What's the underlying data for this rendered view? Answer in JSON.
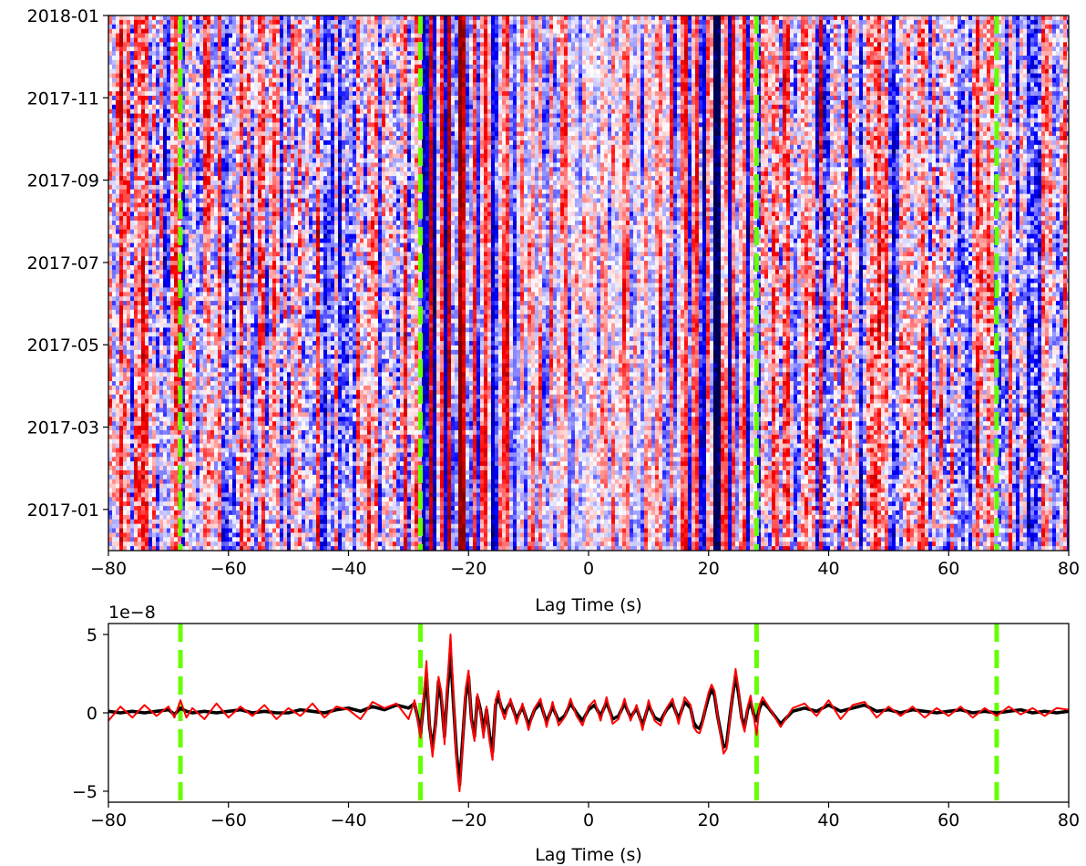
{
  "chart_data": [
    {
      "type": "heatmap",
      "title": "",
      "xlabel": "Lag Time (s)",
      "ylabel": "",
      "xlim": [
        -80,
        80
      ],
      "xticks": [
        -80,
        -60,
        -40,
        -20,
        0,
        20,
        40,
        60,
        80
      ],
      "ytick_labels": [
        "2018-01",
        "2017-11",
        "2017-09",
        "2017-07",
        "2017-05",
        "2017-03",
        "2017-01"
      ],
      "ylim": [
        "2016-12",
        "2018-01"
      ],
      "colormap": "seismic (blue-white-red)",
      "colors": {
        "negative": "#0000cc",
        "positive": "#d40000",
        "deep_negative": "#000050",
        "deep_positive": "#800000"
      },
      "column_means": {
        "x": [
          -28.0,
          -27.2,
          -26.4,
          -25.6,
          -24.8,
          -24.0,
          -23.2,
          -22.4,
          -21.6,
          -20.8,
          -20.0,
          -19.2,
          -18.4,
          -17.6,
          -16.8,
          -16.0,
          -15.2,
          -14.4,
          -13.6,
          -12.8,
          -12.0,
          -11.2,
          -10.4,
          -9.6,
          -8.8,
          -8.0,
          -7.2,
          -6.4,
          -5.6,
          -4.8,
          -4.0,
          -3.2,
          -2.4,
          -1.6,
          -0.8,
          0.0,
          0.8,
          1.6,
          2.4,
          3.2,
          4.0,
          4.8,
          5.6,
          6.4,
          7.2,
          8.0,
          8.8,
          9.6,
          10.4,
          11.2,
          12.0,
          12.8,
          13.6,
          14.4,
          15.2,
          16.0,
          16.8,
          17.6,
          18.4,
          19.2,
          20.0,
          20.8,
          21.6,
          22.4,
          23.2,
          24.0,
          24.8,
          25.6,
          26.4,
          27.2,
          28.0
        ],
        "values": [
          -0.5,
          -0.9,
          0.7,
          -0.9,
          0.9,
          -0.8,
          1.0,
          -1.0,
          1.0,
          0.5,
          -0.6,
          0.6,
          -0.5,
          0.6,
          0.3,
          -0.7,
          -0.2,
          0.3,
          0.5,
          -0.4,
          -0.2,
          0.3,
          -0.3,
          0.4,
          -0.2,
          0.3,
          -0.5,
          0.4,
          -0.3,
          0.2,
          0.3,
          -0.3,
          0.2,
          -0.2,
          0.1,
          0.0,
          0.2,
          -0.2,
          0.3,
          -0.2,
          0.2,
          -0.3,
          0.2,
          0.3,
          -0.3,
          0.2,
          -0.2,
          0.3,
          -0.2,
          0.2,
          0.3,
          -0.4,
          0.4,
          -0.5,
          0.3,
          0.6,
          -0.7,
          0.8,
          -0.4,
          -0.6,
          0.8,
          -1.0,
          -1.0,
          0.9,
          -0.8,
          0.6,
          -0.5,
          0.7,
          -0.6,
          0.5,
          -0.5
        ]
      },
      "reference_lines": {
        "x": [
          -68,
          -28,
          28,
          68
        ],
        "color": "#66ff00",
        "style": "dashed"
      }
    },
    {
      "type": "line",
      "title": "",
      "xlabel": "Lag Time (s)",
      "ylabel": "",
      "offset_label": "1e−8",
      "xlim": [
        -80,
        80
      ],
      "ylim": [
        -5.7,
        5.7
      ],
      "xticks": [
        -80,
        -60,
        -40,
        -20,
        0,
        20,
        40,
        60,
        80
      ],
      "yticks": [
        -5,
        0,
        5
      ],
      "reference_lines": {
        "x": [
          -68,
          -28,
          28,
          68
        ],
        "color": "#66ff00",
        "style": "dashed"
      },
      "series": [
        {
          "color": "#000000",
          "x": [
            -80,
            -78,
            -76,
            -74,
            -72,
            -70,
            -69,
            -68,
            -67,
            -66,
            -64,
            -62,
            -60,
            -58,
            -56,
            -54,
            -52,
            -50,
            -48,
            -46,
            -44,
            -42,
            -40,
            -38,
            -36,
            -34,
            -32,
            -30,
            -29,
            -28.4,
            -28,
            -27.5,
            -27,
            -26.5,
            -26,
            -25.5,
            -25,
            -24.5,
            -24,
            -23.5,
            -23,
            -22.5,
            -22,
            -21.5,
            -21,
            -20.5,
            -20,
            -19.5,
            -19,
            -18.5,
            -18,
            -17.5,
            -17,
            -16.5,
            -16,
            -15.5,
            -15,
            -14.5,
            -14,
            -13,
            -12,
            -11,
            -10,
            -9,
            -8,
            -7,
            -6,
            -5,
            -4,
            -3,
            -2,
            -1,
            0,
            1,
            2,
            3,
            4,
            5,
            6,
            7,
            8,
            9,
            10,
            11,
            12,
            13,
            14,
            15,
            16,
            17,
            17.5,
            18,
            18.5,
            19,
            19.5,
            20,
            20.5,
            21,
            21.5,
            22,
            22.5,
            23,
            23.5,
            24,
            24.5,
            25,
            25.5,
            26,
            26.5,
            27,
            27.5,
            28,
            28.5,
            29,
            30,
            32,
            34,
            36,
            38,
            40,
            42,
            44,
            46,
            48,
            50,
            52,
            54,
            56,
            58,
            60,
            62,
            64,
            66,
            68,
            70,
            72,
            74,
            76,
            78,
            80
          ],
          "values": [
            0.1,
            0.0,
            0.1,
            0.0,
            0.1,
            0.2,
            -0.1,
            0.3,
            0.1,
            0.0,
            0.1,
            0.0,
            0.1,
            0.2,
            0.0,
            0.1,
            0.0,
            0.0,
            0.2,
            0.1,
            0.0,
            0.2,
            0.3,
            0.1,
            0.4,
            0.2,
            0.5,
            0.3,
            0.6,
            -0.4,
            -1.3,
            0.5,
            2.5,
            -0.8,
            -2.3,
            -0.7,
            2.0,
            0.8,
            -1.5,
            1.5,
            3.8,
            0.5,
            -2.6,
            -4.6,
            -1.8,
            1.0,
            2.3,
            -0.4,
            -1.5,
            1.0,
            0.2,
            -1.2,
            0.2,
            -1.4,
            -2.5,
            0.5,
            1.0,
            0.3,
            0.0,
            0.7,
            -0.4,
            0.4,
            -0.8,
            0.2,
            0.6,
            -0.6,
            0.4,
            -0.5,
            -0.2,
            0.6,
            0.0,
            -0.5,
            0.2,
            0.5,
            -0.2,
            0.7,
            -0.4,
            -0.2,
            0.6,
            -0.3,
            0.3,
            -0.8,
            0.5,
            -0.3,
            -0.5,
            0.2,
            0.6,
            -0.4,
            0.7,
            0.3,
            -0.6,
            -0.9,
            -1.0,
            -0.5,
            0.3,
            1.0,
            1.5,
            1.1,
            -0.2,
            -1.2,
            -2.2,
            -2.0,
            -0.4,
            1.1,
            2.4,
            1.2,
            -0.3,
            -0.9,
            0.2,
            0.7,
            -0.1,
            -0.5,
            0.3,
            0.7,
            0.3,
            -0.7,
            0.1,
            0.3,
            0.1,
            0.5,
            0.1,
            0.3,
            0.5,
            0.1,
            0.2,
            0.0,
            0.2,
            0.1,
            0.0,
            0.1,
            0.2,
            0.0,
            0.1,
            0.0,
            0.1,
            0.2,
            0.0,
            0.1,
            0.0,
            0.1
          ]
        },
        {
          "color": "#ff0000",
          "x": [
            -80,
            -78,
            -76,
            -74,
            -72,
            -70,
            -69,
            -68,
            -67,
            -66,
            -64,
            -62,
            -60,
            -58,
            -56,
            -54,
            -52,
            -50,
            -48,
            -46,
            -44,
            -42,
            -40,
            -38,
            -36,
            -34,
            -32,
            -30,
            -29,
            -28.4,
            -28,
            -27.5,
            -27,
            -26.5,
            -26,
            -25.5,
            -25,
            -24.5,
            -24,
            -23.5,
            -23,
            -22.5,
            -22,
            -21.5,
            -21,
            -20.5,
            -20,
            -19.5,
            -19,
            -18.5,
            -18,
            -17.5,
            -17,
            -16.5,
            -16,
            -15.5,
            -15,
            -14.5,
            -14,
            -13,
            -12,
            -11,
            -10,
            -9,
            -8,
            -7,
            -6,
            -5,
            -4,
            -3,
            -2,
            -1,
            0,
            1,
            2,
            3,
            4,
            5,
            6,
            7,
            8,
            9,
            10,
            11,
            12,
            13,
            14,
            15,
            16,
            17,
            17.5,
            18,
            18.5,
            19,
            19.5,
            20,
            20.5,
            21,
            21.5,
            22,
            22.5,
            23,
            23.5,
            24,
            24.5,
            25,
            25.5,
            26,
            26.5,
            27,
            27.5,
            28,
            28.5,
            29,
            30,
            32,
            34,
            36,
            38,
            40,
            42,
            44,
            46,
            48,
            50,
            52,
            54,
            56,
            58,
            60,
            62,
            64,
            66,
            68,
            70,
            72,
            74,
            76,
            78,
            80
          ],
          "values": [
            -0.5,
            0.4,
            -0.3,
            0.5,
            -0.2,
            0.4,
            -0.3,
            0.8,
            -0.3,
            0.3,
            -0.4,
            0.6,
            -0.3,
            0.4,
            -0.2,
            0.5,
            -0.4,
            0.3,
            -0.2,
            0.6,
            -0.3,
            0.4,
            0.2,
            -0.4,
            0.7,
            0.3,
            0.6,
            -0.4,
            0.8,
            -0.6,
            -1.6,
            0.8,
            3.3,
            -0.6,
            -2.8,
            -1.0,
            2.3,
            1.3,
            -2.0,
            2.0,
            5.0,
            1.0,
            -3.2,
            -5.0,
            -2.2,
            1.5,
            2.7,
            -0.6,
            -1.8,
            1.2,
            0.0,
            -1.6,
            0.4,
            -1.8,
            -3.0,
            0.8,
            1.4,
            0.2,
            -0.4,
            0.9,
            -0.7,
            0.6,
            -1.1,
            0.3,
            0.9,
            -0.9,
            0.7,
            -0.8,
            -0.3,
            0.9,
            -0.2,
            -0.8,
            0.4,
            0.8,
            -0.5,
            1.0,
            -0.7,
            -0.4,
            0.9,
            -0.5,
            0.5,
            -1.1,
            0.8,
            -0.5,
            -0.8,
            0.3,
            0.9,
            -0.7,
            1.0,
            0.5,
            -0.9,
            -1.2,
            -1.3,
            -0.7,
            0.5,
            1.3,
            1.8,
            1.4,
            -0.2,
            -1.4,
            -2.6,
            -2.3,
            -0.6,
            1.3,
            2.8,
            1.5,
            -0.5,
            -1.2,
            0.4,
            1.1,
            -0.2,
            -1.4,
            0.5,
            1.0,
            0.4,
            -0.9,
            0.3,
            0.6,
            -0.2,
            0.8,
            -0.4,
            0.5,
            0.7,
            -0.3,
            0.4,
            -0.2,
            0.4,
            -0.3,
            0.3,
            -0.2,
            0.4,
            -0.3,
            0.3,
            -0.2,
            0.4,
            -0.1,
            0.3,
            -0.2,
            0.3,
            0.2
          ]
        }
      ]
    }
  ]
}
